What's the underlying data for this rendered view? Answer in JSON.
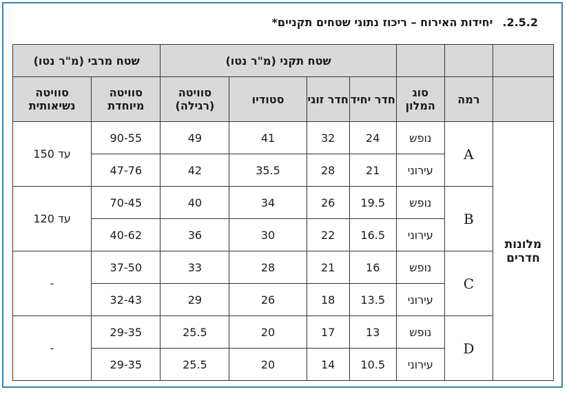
{
  "title": {
    "section": "2.5.2.",
    "text": "יחידות האירוח – ריכוז נתוני שטחים תקניים*"
  },
  "group_headers": {
    "standard": "שטח תקני (מ\"ר נטו)",
    "max": "שטח מרבי (מ\"ר נטו)"
  },
  "columns": {
    "level": "רמה",
    "hotel_type": "סוג המלון",
    "single": "חדר יחיד",
    "double": "חדר זוגי",
    "studio": "סטודיו",
    "suite_regular": "סוויטה (רגילה)",
    "suite_special": "סוויטה מיוחדת",
    "suite_presidential": "סוויטה נשיאותית"
  },
  "category": "מלונות חדרים",
  "levels": [
    {
      "level": "A",
      "presidential": "עד 150",
      "rows": [
        {
          "type": "נופש",
          "single": "24",
          "double": "32",
          "studio": "41",
          "suite_regular": "49",
          "suite_special": "90-55"
        },
        {
          "type": "עירוני",
          "single": "21",
          "double": "28",
          "studio": "35.5",
          "suite_regular": "42",
          "suite_special": "47-76"
        }
      ]
    },
    {
      "level": "B",
      "presidential": "עד 120",
      "rows": [
        {
          "type": "נופש",
          "single": "19.5",
          "double": "26",
          "studio": "34",
          "suite_regular": "40",
          "suite_special": "70-45"
        },
        {
          "type": "עירוני",
          "single": "16.5",
          "double": "22",
          "studio": "30",
          "suite_regular": "36",
          "suite_special": "40-62"
        }
      ]
    },
    {
      "level": "C",
      "presidential": "-",
      "rows": [
        {
          "type": "נופש",
          "single": "16",
          "double": "21",
          "studio": "28",
          "suite_regular": "33",
          "suite_special": "37-50"
        },
        {
          "type": "עירוני",
          "single": "13.5",
          "double": "18",
          "studio": "26",
          "suite_regular": "29",
          "suite_special": "32-43"
        }
      ]
    },
    {
      "level": "D",
      "presidential": "-",
      "rows": [
        {
          "type": "נופש",
          "single": "13",
          "double": "17",
          "studio": "20",
          "suite_regular": "25.5",
          "suite_special": "29-35"
        },
        {
          "type": "עירוני",
          "single": "10.5",
          "double": "14",
          "studio": "20",
          "suite_regular": "25.5",
          "suite_special": "29-35"
        }
      ]
    }
  ]
}
